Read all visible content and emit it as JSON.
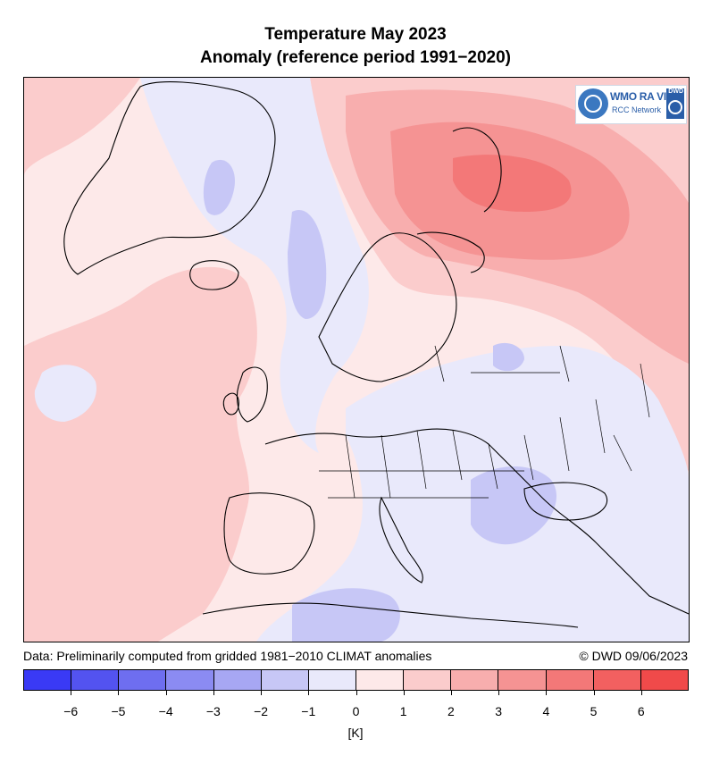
{
  "title_line1": "Temperature May 2023",
  "title_line2": "Anomaly (reference period 1991−2020)",
  "logo": {
    "text_main": "WMO RA VI",
    "text_sub": "RCC Network",
    "text_corner": "DWD",
    "icon": "wmo-emblem-icon"
  },
  "data_note": "Data: Preliminarily computed from gridded 1981−2010 CLIMAT anomalies",
  "credit": "© DWD 09/06/2023",
  "colorbar": {
    "unit": "[K]",
    "bins": [
      {
        "from": -7,
        "to": -6,
        "color": "#3a3af5"
      },
      {
        "from": -6,
        "to": -5,
        "color": "#5353f0"
      },
      {
        "from": -5,
        "to": -4,
        "color": "#6e6ef0"
      },
      {
        "from": -4,
        "to": -3,
        "color": "#8b8bf2"
      },
      {
        "from": -3,
        "to": -2,
        "color": "#a7a7f3"
      },
      {
        "from": -2,
        "to": -1,
        "color": "#c7c7f6"
      },
      {
        "from": -1,
        "to": 0,
        "color": "#e9e9fb"
      },
      {
        "from": 0,
        "to": 1,
        "color": "#fde9e9"
      },
      {
        "from": 1,
        "to": 2,
        "color": "#fbcccc"
      },
      {
        "from": 2,
        "to": 3,
        "color": "#f8aeae"
      },
      {
        "from": 3,
        "to": 4,
        "color": "#f59393"
      },
      {
        "from": 4,
        "to": 5,
        "color": "#f37878"
      },
      {
        "from": 5,
        "to": 6,
        "color": "#f26060"
      },
      {
        "from": 6,
        "to": 7,
        "color": "#f04a4a"
      }
    ],
    "tick_labels": [
      "−6",
      "−5",
      "−4",
      "−3",
      "−2",
      "−1",
      "0",
      "1",
      "2",
      "3",
      "4",
      "5",
      "6"
    ]
  },
  "map": {
    "extent_label": "Europe",
    "background_color": "#fde9e9"
  }
}
